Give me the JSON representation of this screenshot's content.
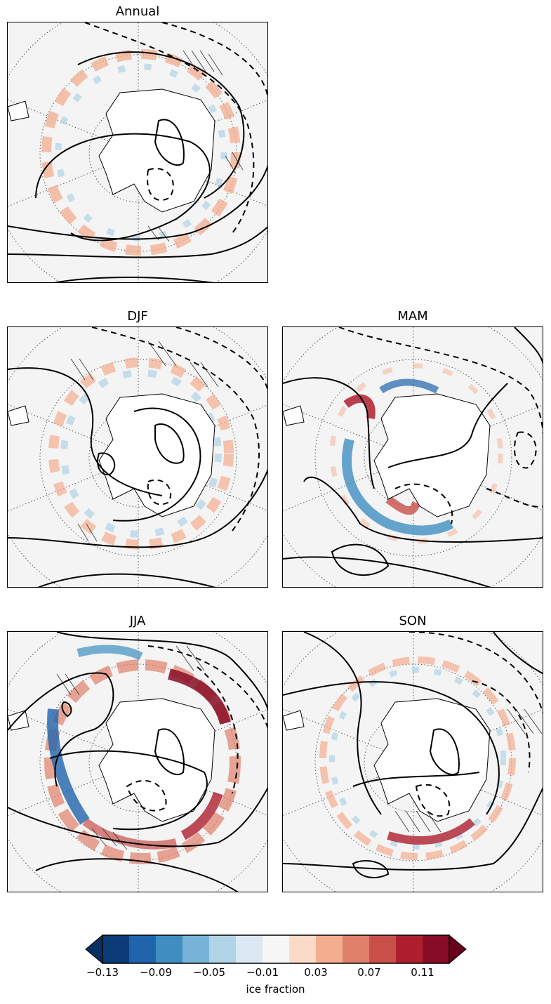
{
  "panels": [
    {
      "id": "annual",
      "title": "Annual"
    },
    {
      "id": "djf",
      "title": "DJF"
    },
    {
      "id": "mam",
      "title": "MAM"
    },
    {
      "id": "jja",
      "title": "JJA"
    },
    {
      "id": "son",
      "title": "SON"
    }
  ],
  "colorbar": {
    "label": "ice fraction",
    "ticks": [
      "−0.13",
      "−0.09",
      "−0.05",
      "−0.01",
      "0.03",
      "0.07",
      "0.11"
    ],
    "colors": [
      "#0b3c78",
      "#1f64ad",
      "#3f8ec2",
      "#77b3d6",
      "#b1d3e6",
      "#dbe9f2",
      "#f7f7f7",
      "#fbdac8",
      "#f3ad8f",
      "#e0806a",
      "#c9504a",
      "#ae1f2e",
      "#870d26"
    ],
    "under_color": "#053061",
    "over_color": "#67001f"
  },
  "colors": {
    "ocean_background": "#f4f4f4",
    "land": "#ffffff"
  }
}
